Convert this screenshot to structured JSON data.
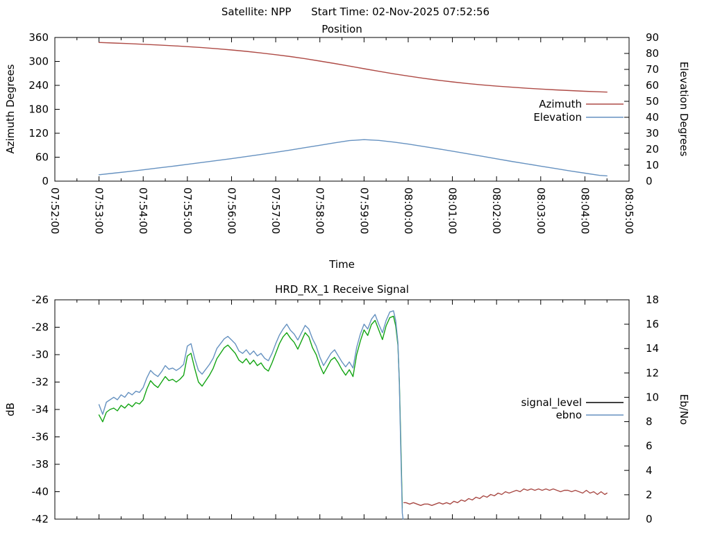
{
  "header": {
    "title": "Satellite: NPP      Start Time: 02-Nov-2025 07:52:56"
  },
  "chart_data": [
    {
      "type": "line",
      "title": "Position",
      "xlabel": "Time",
      "x_axis": {
        "start_s": 0,
        "end_s": 780,
        "labels_visible": true,
        "minor_tick_s": 30,
        "tick_labels": [
          "07:52:00",
          "07:53:00",
          "07:54:00",
          "07:55:00",
          "07:56:00",
          "07:57:00",
          "07:58:00",
          "07:59:00",
          "08:00:00",
          "08:01:00",
          "08:02:00",
          "08:03:00",
          "08:04:00",
          "08:05:00"
        ]
      },
      "y_left": {
        "label": "Azimuth Degrees",
        "range": [
          0,
          360
        ],
        "ticks": [
          0,
          60,
          120,
          180,
          240,
          300,
          360
        ]
      },
      "y_right": {
        "label": "Elevation Degrees",
        "range": [
          0,
          90
        ],
        "ticks": [
          0,
          10,
          20,
          30,
          40,
          50,
          60,
          70,
          80,
          90
        ]
      },
      "legend": [
        {
          "label": "Azimuth",
          "color": "#ae4a45"
        },
        {
          "label": "Elevation",
          "color": "#6591c0"
        }
      ],
      "x_unit": "seconds after 07:52:00",
      "series": [
        {
          "name": "Azimuth",
          "axis": "left",
          "color": "#ae4a45",
          "t": [
            60,
            80,
            100,
            120,
            140,
            160,
            180,
            200,
            220,
            240,
            260,
            280,
            300,
            320,
            340,
            360,
            380,
            400,
            420,
            440,
            460,
            480,
            500,
            520,
            540,
            560,
            580,
            600,
            620,
            640,
            660,
            680,
            700,
            720,
            740,
            750
          ],
          "v": [
            347.5,
            346.1,
            344.7,
            343.0,
            341.3,
            339.3,
            337.1,
            334.6,
            331.9,
            328.7,
            325.3,
            321.3,
            316.9,
            312.1,
            306.7,
            300.9,
            294.7,
            288.3,
            281.7,
            275.3,
            269.1,
            263.3,
            257.9,
            253.1,
            248.7,
            244.7,
            241.3,
            238.1,
            235.4,
            232.9,
            230.7,
            228.7,
            227.0,
            225.3,
            223.9,
            223.2
          ]
        },
        {
          "name": "Elevation",
          "axis": "right",
          "color": "#6591c0",
          "t": [
            60,
            80,
            100,
            120,
            140,
            160,
            180,
            200,
            220,
            240,
            260,
            280,
            300,
            320,
            340,
            360,
            380,
            400,
            420,
            440,
            460,
            480,
            500,
            520,
            540,
            560,
            580,
            600,
            620,
            640,
            660,
            680,
            700,
            720,
            740,
            750
          ],
          "v": [
            4.0,
            5.0,
            6.0,
            7.1,
            8.2,
            9.3,
            10.5,
            11.7,
            12.9,
            14.1,
            15.4,
            16.7,
            18.1,
            19.5,
            21.0,
            22.5,
            24.0,
            25.4,
            26.0,
            25.5,
            24.5,
            23.2,
            21.8,
            20.3,
            18.8,
            17.2,
            15.6,
            14.0,
            12.4,
            10.9,
            9.4,
            7.9,
            6.4,
            5.0,
            3.6,
            3.3
          ]
        }
      ]
    },
    {
      "type": "line",
      "title": "HRD_RX_1 Receive Signal",
      "x_axis": {
        "start_s": 0,
        "end_s": 780,
        "labels_visible": false,
        "minor_tick_s": 30
      },
      "y_left": {
        "label": "dB",
        "range": [
          -42,
          -26
        ],
        "ticks": [
          -42,
          -40,
          -38,
          -36,
          -34,
          -32,
          -30,
          -28,
          -26
        ]
      },
      "y_right": {
        "label": "Eb/No",
        "range": [
          0,
          18
        ],
        "ticks": [
          0,
          2,
          4,
          6,
          8,
          10,
          12,
          14,
          16,
          18
        ]
      },
      "legend": [
        {
          "label": "signal_level",
          "color": "#000000"
        },
        {
          "label": "ebno",
          "color": "#6591c0"
        }
      ],
      "x_unit": "seconds after 07:52:00",
      "series": [
        {
          "name": "signal_level_locked",
          "axis": "left",
          "color": "#12a412",
          "t": [
            60,
            65,
            70,
            75,
            80,
            85,
            90,
            95,
            100,
            105,
            110,
            115,
            120,
            125,
            130,
            135,
            140,
            145,
            150,
            155,
            160,
            165,
            170,
            175,
            180,
            185,
            190,
            195,
            200,
            205,
            210,
            215,
            220,
            225,
            230,
            235,
            240,
            245,
            250,
            255,
            260,
            265,
            270,
            275,
            280,
            285,
            290,
            295,
            300,
            305,
            310,
            315,
            320,
            325,
            330,
            335,
            340,
            345,
            350,
            355,
            360,
            365,
            370,
            375,
            380,
            385,
            390,
            395,
            400,
            405,
            410,
            415,
            420,
            425,
            430,
            435,
            440,
            445,
            450,
            455,
            460,
            463,
            466,
            468,
            470,
            472
          ],
          "v": [
            -34.4,
            -34.9,
            -34.2,
            -34.0,
            -33.9,
            -34.1,
            -33.7,
            -33.9,
            -33.6,
            -33.8,
            -33.5,
            -33.6,
            -33.3,
            -32.5,
            -31.9,
            -32.2,
            -32.4,
            -32.0,
            -31.6,
            -31.9,
            -31.8,
            -32.0,
            -31.8,
            -31.5,
            -30.1,
            -29.9,
            -31.0,
            -32.0,
            -32.3,
            -31.9,
            -31.5,
            -31.0,
            -30.3,
            -29.9,
            -29.5,
            -29.3,
            -29.6,
            -29.9,
            -30.4,
            -30.6,
            -30.3,
            -30.7,
            -30.4,
            -30.8,
            -30.6,
            -31.0,
            -31.2,
            -30.6,
            -29.9,
            -29.2,
            -28.7,
            -28.4,
            -28.8,
            -29.1,
            -29.6,
            -29.0,
            -28.4,
            -28.7,
            -29.5,
            -30.0,
            -30.8,
            -31.4,
            -30.9,
            -30.4,
            -30.2,
            -30.6,
            -31.1,
            -31.5,
            -31.1,
            -31.6,
            -30.0,
            -29.0,
            -28.2,
            -28.6,
            -27.8,
            -27.5,
            -28.2,
            -28.9,
            -27.9,
            -27.3,
            -27.2,
            -27.9,
            -29.3,
            -32.0,
            -36.5,
            -41.2
          ]
        },
        {
          "name": "ebno",
          "axis": "right",
          "color": "#6591c0",
          "t": [
            60,
            65,
            70,
            75,
            80,
            85,
            90,
            95,
            100,
            105,
            110,
            115,
            120,
            125,
            130,
            135,
            140,
            145,
            150,
            155,
            160,
            165,
            170,
            175,
            180,
            185,
            190,
            195,
            200,
            205,
            210,
            215,
            220,
            225,
            230,
            235,
            240,
            245,
            250,
            255,
            260,
            265,
            270,
            275,
            280,
            285,
            290,
            295,
            300,
            305,
            310,
            315,
            320,
            325,
            330,
            335,
            340,
            345,
            350,
            355,
            360,
            365,
            370,
            375,
            380,
            385,
            390,
            395,
            400,
            405,
            410,
            415,
            420,
            425,
            430,
            435,
            440,
            445,
            450,
            455,
            460,
            463,
            466,
            468,
            470,
            472,
            473
          ],
          "v": [
            9.4,
            8.6,
            9.6,
            9.8,
            10.0,
            9.8,
            10.2,
            10.0,
            10.4,
            10.2,
            10.5,
            10.4,
            10.8,
            11.6,
            12.2,
            11.9,
            11.7,
            12.1,
            12.6,
            12.3,
            12.4,
            12.2,
            12.4,
            12.7,
            14.2,
            14.4,
            13.2,
            12.2,
            11.9,
            12.3,
            12.7,
            13.2,
            14.0,
            14.4,
            14.8,
            15.0,
            14.7,
            14.4,
            13.8,
            13.6,
            13.9,
            13.5,
            13.8,
            13.4,
            13.6,
            13.2,
            13.0,
            13.6,
            14.4,
            15.1,
            15.6,
            16.0,
            15.5,
            15.2,
            14.7,
            15.3,
            15.9,
            15.6,
            14.8,
            14.2,
            13.3,
            12.6,
            13.1,
            13.6,
            13.9,
            13.4,
            12.9,
            12.5,
            12.9,
            12.4,
            14.1,
            15.2,
            16.0,
            15.6,
            16.4,
            16.8,
            16.0,
            15.3,
            16.3,
            17.0,
            17.1,
            16.3,
            14.5,
            11.0,
            5.5,
            0.5,
            0.0
          ]
        },
        {
          "name": "signal_level_unlocked",
          "axis": "left",
          "color": "#a84843",
          "t": [
            474,
            477,
            482,
            487,
            492,
            497,
            502,
            507,
            512,
            517,
            522,
            527,
            532,
            537,
            542,
            547,
            552,
            557,
            562,
            567,
            572,
            577,
            582,
            587,
            592,
            597,
            602,
            607,
            612,
            617,
            622,
            627,
            632,
            637,
            642,
            647,
            652,
            657,
            662,
            667,
            672,
            677,
            682,
            687,
            692,
            697,
            702,
            707,
            712,
            717,
            722,
            727,
            732,
            737,
            742,
            747,
            750
          ],
          "v": [
            -40.8,
            -40.8,
            -40.9,
            -40.8,
            -40.9,
            -41.0,
            -40.9,
            -40.9,
            -41.0,
            -40.9,
            -40.8,
            -40.9,
            -40.8,
            -40.9,
            -40.7,
            -40.8,
            -40.6,
            -40.7,
            -40.5,
            -40.6,
            -40.4,
            -40.5,
            -40.3,
            -40.4,
            -40.2,
            -40.3,
            -40.1,
            -40.2,
            -40.0,
            -40.1,
            -40.0,
            -39.9,
            -40.0,
            -39.8,
            -39.9,
            -39.8,
            -39.9,
            -39.8,
            -39.9,
            -39.8,
            -39.9,
            -39.8,
            -39.9,
            -40.0,
            -39.9,
            -39.9,
            -40.0,
            -39.9,
            -40.0,
            -40.1,
            -39.9,
            -40.1,
            -40.0,
            -40.2,
            -40.0,
            -40.2,
            -40.1
          ]
        }
      ]
    }
  ]
}
